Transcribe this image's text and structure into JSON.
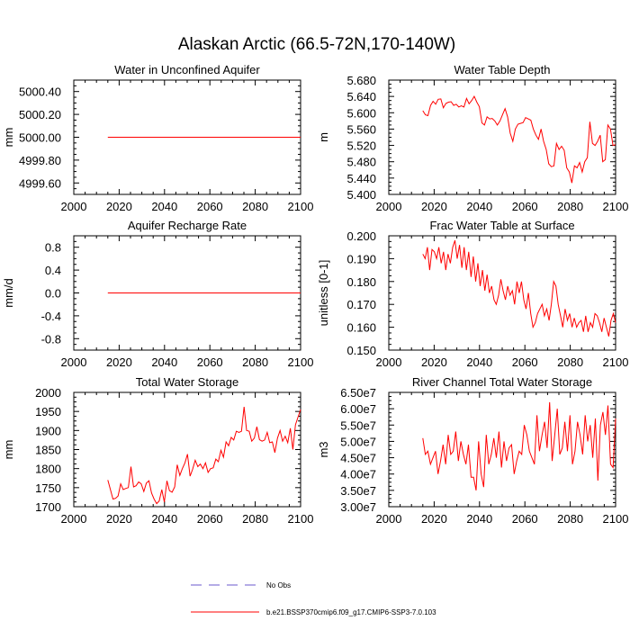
{
  "page_title": "Alaskan Arctic (66.5-72N,170-140W)",
  "legend": [
    {
      "label": "No Obs",
      "color": "#6a5acd",
      "dashed": true
    },
    {
      "label": "b.e21.BSSP370cmip6.f09_g17.CMIP6-SSP3-7.0.103",
      "color": "#ff0000",
      "dashed": false
    }
  ],
  "chart_data": [
    {
      "type": "line",
      "title": "Water in Unconfined Aquifer",
      "ylabel": "mm",
      "xlim": [
        2000,
        2100
      ],
      "xticks": [
        2000,
        2020,
        2040,
        2060,
        2080,
        2100
      ],
      "ylim": [
        4999.5,
        5000.5
      ],
      "yticks": [
        4999.6,
        4999.8,
        5000.0,
        5000.2,
        5000.4
      ],
      "ytick_labels": [
        "4999.60",
        "4999.80",
        "5000.00",
        "5000.20",
        "5000.40"
      ],
      "series": [
        {
          "color": "#ff0000",
          "x": [
            2015,
            2100
          ],
          "y": [
            5000.0,
            5000.0
          ]
        }
      ]
    },
    {
      "type": "line",
      "title": "Water Table Depth",
      "ylabel": "m",
      "xlim": [
        2000,
        2100
      ],
      "xticks": [
        2000,
        2020,
        2040,
        2060,
        2080,
        2100
      ],
      "ylim": [
        5.4,
        5.68
      ],
      "yticks": [
        5.4,
        5.44,
        5.48,
        5.52,
        5.56,
        5.6,
        5.64,
        5.68
      ],
      "ytick_labels": [
        "5.400",
        "5.440",
        "5.480",
        "5.520",
        "5.560",
        "5.600",
        "5.640",
        "5.680"
      ],
      "series": [
        {
          "color": "#ff0000",
          "x_start": 2015,
          "y": [
            5.605,
            5.595,
            5.593,
            5.618,
            5.628,
            5.621,
            5.633,
            5.634,
            5.612,
            5.623,
            5.626,
            5.627,
            5.618,
            5.621,
            5.614,
            5.617,
            5.614,
            5.635,
            5.622,
            5.63,
            5.64,
            5.626,
            5.615,
            5.575,
            5.57,
            5.59,
            5.585,
            5.586,
            5.58,
            5.57,
            5.58,
            5.595,
            5.61,
            5.59,
            5.55,
            5.53,
            5.56,
            5.572,
            5.574,
            5.576,
            5.588,
            5.585,
            5.582,
            5.56,
            5.545,
            5.535,
            5.56,
            5.53,
            5.51,
            5.475,
            5.468,
            5.47,
            5.525,
            5.51,
            5.518,
            5.508,
            5.465,
            5.455,
            5.428,
            5.47,
            5.465,
            5.478,
            5.455,
            5.48,
            5.49,
            5.578,
            5.525,
            5.52,
            5.53,
            5.545,
            5.48,
            5.485,
            5.57,
            5.56,
            5.52,
            5.522
          ]
        }
      ]
    },
    {
      "type": "line",
      "title": "Aquifer Recharge Rate",
      "ylabel": "mm/d",
      "xlim": [
        2000,
        2100
      ],
      "xticks": [
        2000,
        2020,
        2040,
        2060,
        2080,
        2100
      ],
      "ylim": [
        -1.0,
        1.0
      ],
      "yticks": [
        -0.8,
        -0.4,
        0.0,
        0.4,
        0.8
      ],
      "ytick_labels": [
        "-0.8",
        "-0.4",
        "0.0",
        "0.4",
        "0.8"
      ],
      "series": [
        {
          "color": "#ff0000",
          "x": [
            2015,
            2100
          ],
          "y": [
            0.0,
            0.0
          ]
        }
      ]
    },
    {
      "type": "line",
      "title": "Frac Water Table at Surface",
      "ylabel": "unitless [0-1]",
      "xlim": [
        2000,
        2100
      ],
      "xticks": [
        2000,
        2020,
        2040,
        2060,
        2080,
        2100
      ],
      "ylim": [
        0.15,
        0.2
      ],
      "yticks": [
        0.15,
        0.16,
        0.17,
        0.18,
        0.19,
        0.2
      ],
      "ytick_labels": [
        "0.150",
        "0.160",
        "0.170",
        "0.180",
        "0.190",
        "0.200"
      ],
      "series": [
        {
          "color": "#ff0000",
          "x_start": 2015,
          "y": [
            0.192,
            0.19,
            0.195,
            0.185,
            0.194,
            0.193,
            0.19,
            0.195,
            0.188,
            0.193,
            0.185,
            0.192,
            0.188,
            0.195,
            0.198,
            0.19,
            0.196,
            0.186,
            0.195,
            0.185,
            0.193,
            0.182,
            0.191,
            0.18,
            0.188,
            0.178,
            0.185,
            0.176,
            0.183,
            0.175,
            0.178,
            0.172,
            0.17,
            0.174,
            0.181,
            0.176,
            0.172,
            0.178,
            0.174,
            0.176,
            0.17,
            0.18,
            0.175,
            0.18,
            0.172,
            0.168,
            0.175,
            0.166,
            0.16,
            0.162,
            0.166,
            0.168,
            0.17,
            0.165,
            0.168,
            0.163,
            0.17,
            0.18,
            0.178,
            0.17,
            0.165,
            0.16,
            0.168,
            0.163,
            0.166,
            0.16,
            0.164,
            0.16,
            0.162,
            0.163,
            0.158,
            0.165,
            0.158,
            0.162,
            0.16,
            0.166,
            0.165,
            0.162,
            0.158,
            0.164,
            0.16,
            0.156,
            0.163,
            0.166,
            0.162
          ]
        }
      ]
    },
    {
      "type": "line",
      "title": "Total Water Storage",
      "ylabel": "mm",
      "xlim": [
        2000,
        2100
      ],
      "xticks": [
        2000,
        2020,
        2040,
        2060,
        2080,
        2100
      ],
      "ylim": [
        1700,
        2000
      ],
      "yticks": [
        1700,
        1750,
        1800,
        1850,
        1900,
        1950,
        2000
      ],
      "ytick_labels": [
        "1700",
        "1750",
        "1800",
        "1850",
        "1900",
        "1950",
        "2000"
      ],
      "series": [
        {
          "color": "#ff0000",
          "x_start": 2015,
          "y": [
            1770,
            1745,
            1720,
            1722,
            1728,
            1760,
            1745,
            1748,
            1750,
            1805,
            1752,
            1755,
            1765,
            1760,
            1740,
            1762,
            1768,
            1736,
            1720,
            1708,
            1715,
            1745,
            1712,
            1768,
            1742,
            1738,
            1752,
            1810,
            1782,
            1800,
            1815,
            1838,
            1780,
            1798,
            1822,
            1805,
            1812,
            1800,
            1815,
            1790,
            1800,
            1802,
            1825,
            1818,
            1848,
            1830,
            1870,
            1860,
            1882,
            1875,
            1898,
            1895,
            1898,
            1962,
            1900,
            1898,
            1872,
            1880,
            1910,
            1876,
            1872,
            1875,
            1895,
            1868,
            1870,
            1842,
            1880,
            1900,
            1872,
            1885,
            1868,
            1906,
            1850,
            1915,
            1935,
            1955
          ]
        }
      ]
    },
    {
      "type": "line",
      "title": "River Channel Total Water Storage",
      "ylabel": "m3",
      "xlim": [
        2000,
        2100
      ],
      "xticks": [
        2000,
        2020,
        2040,
        2060,
        2080,
        2100
      ],
      "ylim": [
        30000000,
        65000000
      ],
      "yticks": [
        30000000,
        35000000,
        40000000,
        45000000,
        50000000,
        55000000,
        60000000,
        65000000
      ],
      "ytick_labels": [
        "3.00e7",
        "3.50e7",
        "4.00e7",
        "4.50e7",
        "5.00e7",
        "5.50e7",
        "6.00e7",
        "6.50e7"
      ],
      "series": [
        {
          "color": "#ff0000",
          "x_start": 2015,
          "y": [
            51000000,
            46000000,
            47000000,
            43000000,
            45000000,
            47000000,
            40000000,
            44000000,
            49000000,
            43000000,
            52000000,
            46000000,
            47000000,
            53000000,
            44000000,
            50000000,
            46000000,
            43000000,
            49000000,
            39000000,
            39000000,
            35000000,
            50000000,
            40000000,
            36000000,
            52000000,
            43000000,
            46000000,
            51000000,
            45000000,
            53000000,
            42000000,
            50000000,
            44000000,
            48000000,
            49000000,
            40000000,
            44000000,
            47000000,
            46000000,
            55000000,
            52000000,
            47000000,
            45000000,
            43000000,
            58000000,
            47000000,
            52000000,
            56000000,
            48000000,
            62000000,
            44000000,
            52000000,
            60000000,
            46000000,
            48000000,
            56000000,
            47000000,
            58000000,
            43000000,
            47000000,
            56000000,
            52000000,
            46000000,
            58000000,
            50000000,
            55000000,
            45000000,
            57000000,
            38000000,
            55000000,
            59000000,
            52000000,
            61000000,
            43000000,
            42000000,
            57000000
          ]
        }
      ]
    }
  ]
}
